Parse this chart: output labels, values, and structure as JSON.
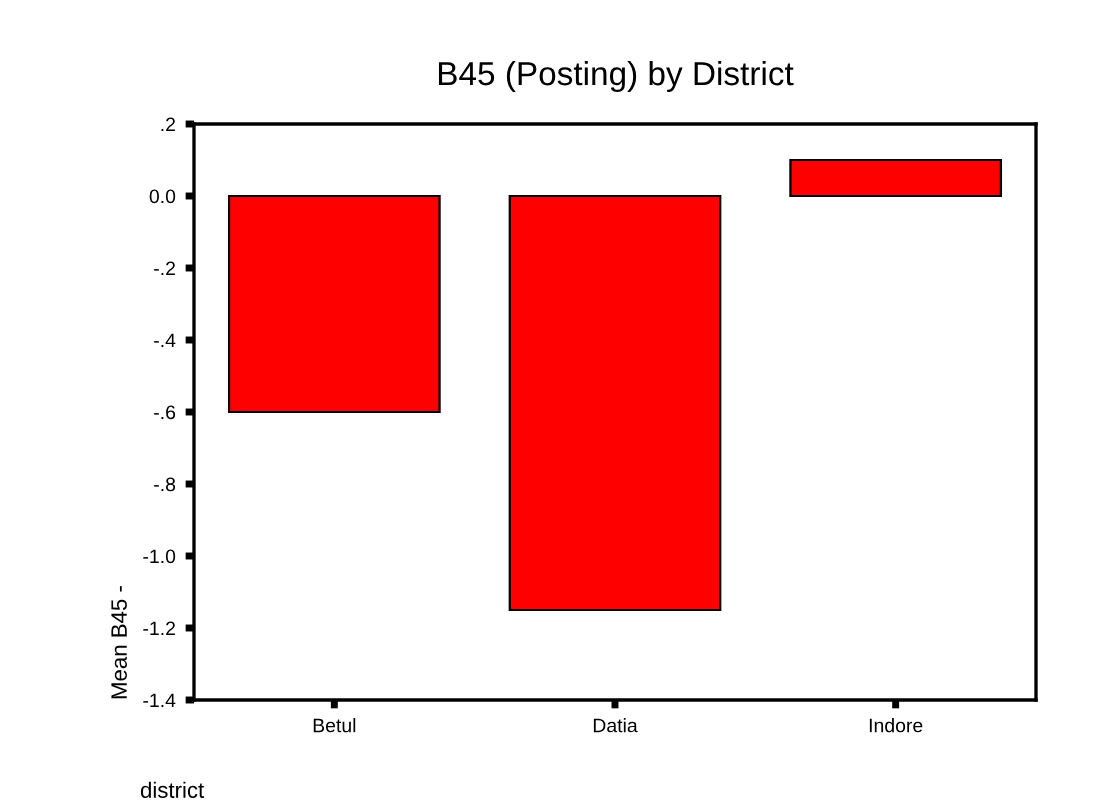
{
  "chart_data": {
    "type": "bar",
    "title": "B45 (Posting) by District",
    "xlabel": "district",
    "ylabel": "Mean B45 -",
    "categories": [
      "Betul",
      "Datia",
      "Indore"
    ],
    "values": [
      -0.6,
      -1.15,
      0.1
    ],
    "color": "#ff0000",
    "ylim": [
      -1.4,
      0.2
    ],
    "yticks": [
      {
        "value": 0.2,
        "label": ".2"
      },
      {
        "value": 0.0,
        "label": "0.0"
      },
      {
        "value": -0.2,
        "label": "-.2"
      },
      {
        "value": -0.4,
        "label": "-.4"
      },
      {
        "value": -0.6,
        "label": "-.6"
      },
      {
        "value": -0.8,
        "label": "-.8"
      },
      {
        "value": -1.0,
        "label": "-1.0"
      },
      {
        "value": -1.2,
        "label": "-1.2"
      },
      {
        "value": -1.4,
        "label": "-1.4"
      }
    ],
    "grid": false
  }
}
